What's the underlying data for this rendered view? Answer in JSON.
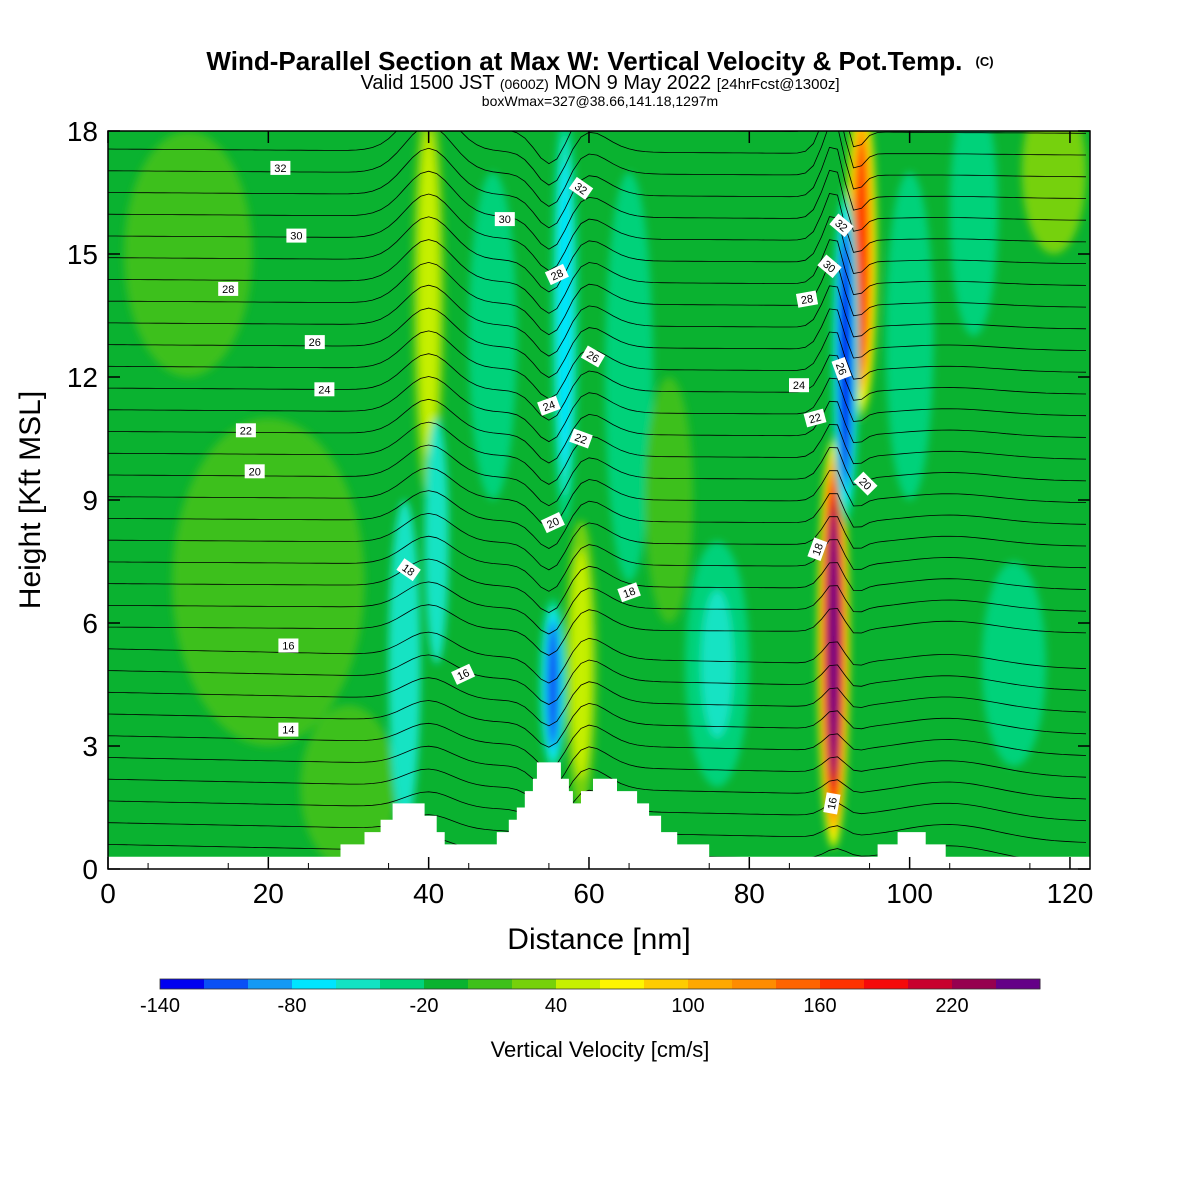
{
  "header": {
    "title": "Wind-Parallel Section at Max W: Vertical Velocity & Pot.Temp.",
    "copyright": "(C)",
    "valid_prefix": "Valid 1500 JST",
    "valid_utc": "(0600Z)",
    "valid_date": "MON 9 May 2022",
    "forecast": "[24hrFcst@1300z]",
    "boxwmax": "boxWmax=327@38.66,141.18,1297m"
  },
  "chart_data": {
    "type": "heatmap",
    "xlabel": "Distance [nm]",
    "ylabel": "Height [Kft MSL]",
    "xlim": [
      0,
      122.5
    ],
    "ylim": [
      0,
      18
    ],
    "xticks": [
      0,
      20,
      40,
      60,
      80,
      100,
      120
    ],
    "yticks": [
      0,
      3,
      6,
      9,
      12,
      15,
      18
    ],
    "colorbar": {
      "label": "Vertical Velocity [cm/s]",
      "tick_labels": [
        "-140",
        "-80",
        "-20",
        "40",
        "100",
        "160",
        "220"
      ],
      "tick_values": [
        -140,
        -80,
        -20,
        40,
        100,
        160,
        220
      ],
      "levels": [
        -140,
        -120,
        -100,
        -80,
        -60,
        -40,
        -20,
        0,
        20,
        40,
        60,
        80,
        100,
        120,
        140,
        160,
        180,
        200,
        220,
        240,
        260
      ],
      "colors": [
        "#0000f0",
        "#0a50f5",
        "#1499f4",
        "#00e5ff",
        "#13e3c3",
        "#00d27a",
        "#0ab230",
        "#3ec01a",
        "#76d10a",
        "#c6f000",
        "#fff500",
        "#ffcc00",
        "#ffa800",
        "#ff8c00",
        "#ff6400",
        "#ff3200",
        "#f50a0a",
        "#c8002e",
        "#96004f",
        "#640087"
      ]
    },
    "updrafts": [
      {
        "x": 90.5,
        "z_top": 9.5,
        "z_bottom": 1.5,
        "peak_w": 240
      },
      {
        "x": 94,
        "z_top": 18,
        "z_bottom": 12,
        "peak_w": 170
      },
      {
        "x": 40,
        "z_top": 18,
        "z_bottom": 10,
        "peak_w": 55
      },
      {
        "x": 59,
        "z_top": 7.5,
        "z_bottom": 2.5,
        "peak_w": 50
      }
    ],
    "downdrafts": [
      {
        "x": 92,
        "z_top": 16,
        "z_bottom": 9,
        "peak_w": -130
      },
      {
        "x": 55.5,
        "z_top": 6,
        "z_bottom": 3,
        "peak_w": -120
      },
      {
        "x": 57,
        "z_top": 18,
        "z_bottom": 9,
        "peak_w": -70
      }
    ],
    "terrain_kft": [
      [
        0,
        0.3
      ],
      [
        29,
        0.3
      ],
      [
        29,
        0.6
      ],
      [
        32,
        0.6
      ],
      [
        32,
        0.9
      ],
      [
        34,
        0.9
      ],
      [
        34,
        1.2
      ],
      [
        35.5,
        1.2
      ],
      [
        35.5,
        1.6
      ],
      [
        39.5,
        1.6
      ],
      [
        39.5,
        1.3
      ],
      [
        41,
        1.3
      ],
      [
        41,
        0.9
      ],
      [
        42,
        0.9
      ],
      [
        42,
        0.6
      ],
      [
        48.5,
        0.6
      ],
      [
        48.5,
        0.9
      ],
      [
        50,
        0.9
      ],
      [
        50,
        1.2
      ],
      [
        51,
        1.2
      ],
      [
        51,
        1.5
      ],
      [
        52,
        1.5
      ],
      [
        52,
        1.9
      ],
      [
        53,
        1.9
      ],
      [
        53,
        2.2
      ],
      [
        53.5,
        2.2
      ],
      [
        53.5,
        2.6
      ],
      [
        56.5,
        2.6
      ],
      [
        56.5,
        2.2
      ],
      [
        57.5,
        2.2
      ],
      [
        57.5,
        1.9
      ],
      [
        58,
        1.9
      ],
      [
        58,
        1.6
      ],
      [
        59,
        1.6
      ],
      [
        59,
        1.9
      ],
      [
        60.5,
        1.9
      ],
      [
        60.5,
        2.2
      ],
      [
        63.5,
        2.2
      ],
      [
        63.5,
        1.9
      ],
      [
        66,
        1.9
      ],
      [
        66,
        1.6
      ],
      [
        67.5,
        1.6
      ],
      [
        67.5,
        1.3
      ],
      [
        69,
        1.3
      ],
      [
        69,
        0.9
      ],
      [
        71,
        0.9
      ],
      [
        71,
        0.6
      ],
      [
        75,
        0.6
      ],
      [
        75,
        0.3
      ],
      [
        79,
        0.3
      ],
      [
        79,
        0.3
      ],
      [
        96,
        0.3
      ],
      [
        96,
        0.6
      ],
      [
        98.5,
        0.6
      ],
      [
        98.5,
        0.9
      ],
      [
        102,
        0.9
      ],
      [
        102,
        0.6
      ],
      [
        104.5,
        0.6
      ],
      [
        104.5,
        0.3
      ],
      [
        122.5,
        0.3
      ]
    ],
    "theta_labels": [
      {
        "text": "32",
        "x": 21.5,
        "z": 17.1,
        "rot": 0
      },
      {
        "text": "30",
        "x": 23.5,
        "z": 15.45,
        "rot": 0
      },
      {
        "text": "28",
        "x": 15,
        "z": 14.15,
        "rot": 0
      },
      {
        "text": "26",
        "x": 25.8,
        "z": 12.85,
        "rot": 0
      },
      {
        "text": "24",
        "x": 27,
        "z": 11.7,
        "rot": 0
      },
      {
        "text": "22",
        "x": 17.2,
        "z": 10.7,
        "rot": 0
      },
      {
        "text": "20",
        "x": 18.3,
        "z": 9.7,
        "rot": 0
      },
      {
        "text": "18",
        "x": 37.5,
        "z": 7.3,
        "rot": 35
      },
      {
        "text": "16",
        "x": 22.5,
        "z": 5.45,
        "rot": 0
      },
      {
        "text": "16",
        "x": 44.3,
        "z": 4.75,
        "rot": -25
      },
      {
        "text": "14",
        "x": 22.5,
        "z": 3.4,
        "rot": 0
      },
      {
        "text": "30",
        "x": 49.5,
        "z": 15.85,
        "rot": 0
      },
      {
        "text": "32",
        "x": 59,
        "z": 16.6,
        "rot": 35
      },
      {
        "text": "28",
        "x": 56,
        "z": 14.5,
        "rot": -25
      },
      {
        "text": "26",
        "x": 60.5,
        "z": 12.5,
        "rot": 30
      },
      {
        "text": "24",
        "x": 55,
        "z": 11.3,
        "rot": -20
      },
      {
        "text": "22",
        "x": 59,
        "z": 10.5,
        "rot": 20
      },
      {
        "text": "20",
        "x": 55.5,
        "z": 8.45,
        "rot": -25
      },
      {
        "text": "18",
        "x": 65,
        "z": 6.75,
        "rot": -20
      },
      {
        "text": "32",
        "x": 91.5,
        "z": 15.7,
        "rot": 40
      },
      {
        "text": "30",
        "x": 90,
        "z": 14.7,
        "rot": 40
      },
      {
        "text": "28",
        "x": 87.2,
        "z": 13.9,
        "rot": -10
      },
      {
        "text": "26",
        "x": 91.5,
        "z": 12.2,
        "rot": 70
      },
      {
        "text": "24",
        "x": 86.2,
        "z": 11.8,
        "rot": 0
      },
      {
        "text": "22",
        "x": 88.2,
        "z": 11.0,
        "rot": -15
      },
      {
        "text": "20",
        "x": 94.5,
        "z": 9.4,
        "rot": 45
      },
      {
        "text": "18",
        "x": 88.5,
        "z": 7.8,
        "rot": -70
      },
      {
        "text": "16",
        "x": 90.3,
        "z": 1.6,
        "rot": -80
      }
    ]
  }
}
